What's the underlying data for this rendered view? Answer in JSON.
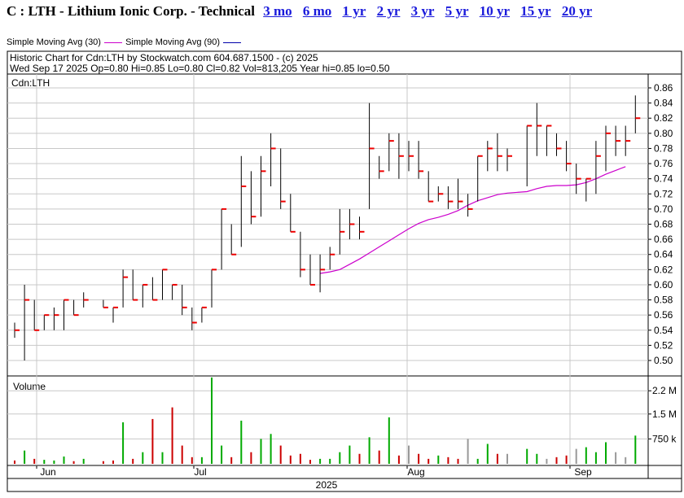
{
  "header": {
    "title": "C : LTH - Lithium Ionic Corp. - Technical",
    "periods": [
      "3 mo",
      "6 mo",
      "1 yr",
      "2 yr",
      "3 yr",
      "5 yr",
      "10 yr",
      "15 yr",
      "20 yr"
    ]
  },
  "legend": {
    "sma30": "Simple Moving Avg (30)",
    "sma90": "Simple Moving Avg (90)",
    "sma30_color": "#cc00cc",
    "sma90_color": "#0000aa"
  },
  "chart_info": {
    "line1": "Historic Chart  for Cdn:LTH by Stockwatch.com 604.687.1500 - (c) 2025",
    "line2": "Wed Sep 17 2025  Op=0.80  Hi=0.85  Lo=0.80  Cl=0.82  Vol=813,205  Year hi=0.85  lo=0.50",
    "symbol": "Cdn:LTH",
    "volume_label": "Volume"
  },
  "colors": {
    "up": "#00aa00",
    "down": "#cc0000",
    "flat": "#999999",
    "tick": "#ee0000",
    "bar": "#000000",
    "grid": "#c8c8c8"
  },
  "chart_data": {
    "type": "ohlc",
    "year_label": "2025",
    "month_labels": [
      {
        "label": "Jun",
        "index": 3
      },
      {
        "label": "Jul",
        "index": 21
      },
      {
        "label": "Aug",
        "index": 43
      },
      {
        "label": "Sep",
        "index": 62
      }
    ],
    "ylim": [
      0.49,
      0.87
    ],
    "price_ticks": [
      "0.86",
      "0.84",
      "0.82",
      "0.80",
      "0.78",
      "0.76",
      "0.74",
      "0.72",
      "0.70",
      "0.68",
      "0.66",
      "0.64",
      "0.62",
      "0.60",
      "0.58",
      "0.56",
      "0.54",
      "0.52",
      "0.50"
    ],
    "price_tick_values": [
      0.86,
      0.84,
      0.82,
      0.8,
      0.78,
      0.76,
      0.74,
      0.72,
      0.7,
      0.68,
      0.66,
      0.64,
      0.62,
      0.6,
      0.58,
      0.56,
      0.54,
      0.52,
      0.5
    ],
    "volume_ticks": [
      {
        "label": "2.2 M",
        "value": 2.2
      },
      {
        "label": "1.5 M",
        "value": 1.5
      },
      {
        "label": "750 k",
        "value": 0.75
      }
    ],
    "volume_max_millions": 2.5,
    "bars": [
      {
        "d": 0,
        "h": 0.55,
        "l": 0.53,
        "c": 0.54
      },
      {
        "d": 1,
        "h": 0.6,
        "l": 0.5,
        "c": 0.58
      },
      {
        "d": 2,
        "h": 0.58,
        "l": 0.54,
        "c": 0.54
      },
      {
        "d": 3,
        "h": 0.56,
        "l": 0.54,
        "c": 0.56
      },
      {
        "d": 4,
        "h": 0.57,
        "l": 0.54,
        "c": 0.56
      },
      {
        "d": 5,
        "h": 0.58,
        "l": 0.54,
        "c": 0.58
      },
      {
        "d": 6,
        "h": 0.58,
        "l": 0.56,
        "c": 0.56
      },
      {
        "d": 7,
        "h": 0.59,
        "l": 0.57,
        "c": 0.58
      },
      {
        "d": 9,
        "h": 0.58,
        "l": 0.57,
        "c": 0.57
      },
      {
        "d": 10,
        "h": 0.57,
        "l": 0.55,
        "c": 0.57
      },
      {
        "d": 11,
        "h": 0.62,
        "l": 0.57,
        "c": 0.61
      },
      {
        "d": 12,
        "h": 0.62,
        "l": 0.58,
        "c": 0.58
      },
      {
        "d": 13,
        "h": 0.6,
        "l": 0.57,
        "c": 0.6
      },
      {
        "d": 14,
        "h": 0.61,
        "l": 0.58,
        "c": 0.58
      },
      {
        "d": 15,
        "h": 0.62,
        "l": 0.58,
        "c": 0.62
      },
      {
        "d": 16,
        "h": 0.6,
        "l": 0.58,
        "c": 0.6
      },
      {
        "d": 17,
        "h": 0.6,
        "l": 0.56,
        "c": 0.57
      },
      {
        "d": 18,
        "h": 0.57,
        "l": 0.54,
        "c": 0.55
      },
      {
        "d": 19,
        "h": 0.57,
        "l": 0.55,
        "c": 0.57
      },
      {
        "d": 20,
        "h": 0.62,
        "l": 0.57,
        "c": 0.62
      },
      {
        "d": 21,
        "h": 0.7,
        "l": 0.62,
        "c": 0.7
      },
      {
        "d": 22,
        "h": 0.68,
        "l": 0.64,
        "c": 0.64
      },
      {
        "d": 23,
        "h": 0.77,
        "l": 0.65,
        "c": 0.73
      },
      {
        "d": 24,
        "h": 0.75,
        "l": 0.68,
        "c": 0.69
      },
      {
        "d": 25,
        "h": 0.77,
        "l": 0.69,
        "c": 0.75
      },
      {
        "d": 26,
        "h": 0.8,
        "l": 0.73,
        "c": 0.78
      },
      {
        "d": 27,
        "h": 0.78,
        "l": 0.7,
        "c": 0.71
      },
      {
        "d": 28,
        "h": 0.72,
        "l": 0.67,
        "c": 0.67
      },
      {
        "d": 29,
        "h": 0.67,
        "l": 0.61,
        "c": 0.62
      },
      {
        "d": 30,
        "h": 0.64,
        "l": 0.6,
        "c": 0.6
      },
      {
        "d": 31,
        "h": 0.64,
        "l": 0.59,
        "c": 0.62
      },
      {
        "d": 32,
        "h": 0.65,
        "l": 0.62,
        "c": 0.64
      },
      {
        "d": 33,
        "h": 0.7,
        "l": 0.64,
        "c": 0.67
      },
      {
        "d": 34,
        "h": 0.7,
        "l": 0.66,
        "c": 0.68
      },
      {
        "d": 35,
        "h": 0.69,
        "l": 0.66,
        "c": 0.67
      },
      {
        "d": 36,
        "h": 0.84,
        "l": 0.7,
        "c": 0.78
      },
      {
        "d": 37,
        "h": 0.77,
        "l": 0.74,
        "c": 0.75
      },
      {
        "d": 38,
        "h": 0.8,
        "l": 0.75,
        "c": 0.79
      },
      {
        "d": 39,
        "h": 0.8,
        "l": 0.74,
        "c": 0.77
      },
      {
        "d": 40,
        "h": 0.79,
        "l": 0.75,
        "c": 0.77
      },
      {
        "d": 41,
        "h": 0.79,
        "l": 0.74,
        "c": 0.75
      },
      {
        "d": 42,
        "h": 0.75,
        "l": 0.71,
        "c": 0.71
      },
      {
        "d": 43,
        "h": 0.73,
        "l": 0.71,
        "c": 0.72
      },
      {
        "d": 44,
        "h": 0.73,
        "l": 0.7,
        "c": 0.71
      },
      {
        "d": 45,
        "h": 0.74,
        "l": 0.7,
        "c": 0.71
      },
      {
        "d": 46,
        "h": 0.72,
        "l": 0.69,
        "c": 0.7
      },
      {
        "d": 47,
        "h": 0.77,
        "l": 0.71,
        "c": 0.77
      },
      {
        "d": 48,
        "h": 0.79,
        "l": 0.75,
        "c": 0.78
      },
      {
        "d": 49,
        "h": 0.8,
        "l": 0.75,
        "c": 0.77
      },
      {
        "d": 50,
        "h": 0.78,
        "l": 0.75,
        "c": 0.77
      },
      {
        "d": 52,
        "h": 0.81,
        "l": 0.73,
        "c": 0.81
      },
      {
        "d": 53,
        "h": 0.84,
        "l": 0.77,
        "c": 0.81
      },
      {
        "d": 54,
        "h": 0.81,
        "l": 0.77,
        "c": 0.81
      },
      {
        "d": 55,
        "h": 0.8,
        "l": 0.77,
        "c": 0.78
      },
      {
        "d": 56,
        "h": 0.79,
        "l": 0.75,
        "c": 0.76
      },
      {
        "d": 57,
        "h": 0.76,
        "l": 0.72,
        "c": 0.74
      },
      {
        "d": 58,
        "h": 0.74,
        "l": 0.71,
        "c": 0.74
      },
      {
        "d": 59,
        "h": 0.79,
        "l": 0.72,
        "c": 0.77
      },
      {
        "d": 60,
        "h": 0.81,
        "l": 0.75,
        "c": 0.8
      },
      {
        "d": 61,
        "h": 0.81,
        "l": 0.77,
        "c": 0.79
      },
      {
        "d": 62,
        "h": 0.81,
        "l": 0.77,
        "c": 0.79
      },
      {
        "d": 63,
        "h": 0.85,
        "l": 0.8,
        "c": 0.82
      }
    ],
    "volume": [
      {
        "d": 0,
        "v": 0.1,
        "dir": "down"
      },
      {
        "d": 1,
        "v": 0.4,
        "dir": "up"
      },
      {
        "d": 2,
        "v": 0.15,
        "dir": "down"
      },
      {
        "d": 3,
        "v": 0.12,
        "dir": "up"
      },
      {
        "d": 4,
        "v": 0.1,
        "dir": "up"
      },
      {
        "d": 5,
        "v": 0.22,
        "dir": "up"
      },
      {
        "d": 6,
        "v": 0.08,
        "dir": "down"
      },
      {
        "d": 7,
        "v": 0.15,
        "dir": "up"
      },
      {
        "d": 9,
        "v": 0.08,
        "dir": "down"
      },
      {
        "d": 10,
        "v": 0.1,
        "dir": "down"
      },
      {
        "d": 11,
        "v": 1.25,
        "dir": "up"
      },
      {
        "d": 12,
        "v": 0.15,
        "dir": "down"
      },
      {
        "d": 13,
        "v": 0.35,
        "dir": "up"
      },
      {
        "d": 14,
        "v": 1.35,
        "dir": "down"
      },
      {
        "d": 15,
        "v": 0.35,
        "dir": "up"
      },
      {
        "d": 16,
        "v": 1.7,
        "dir": "down"
      },
      {
        "d": 17,
        "v": 0.55,
        "dir": "down"
      },
      {
        "d": 18,
        "v": 0.2,
        "dir": "down"
      },
      {
        "d": 19,
        "v": 0.2,
        "dir": "up"
      },
      {
        "d": 20,
        "v": 2.6,
        "dir": "up"
      },
      {
        "d": 21,
        "v": 0.55,
        "dir": "up"
      },
      {
        "d": 22,
        "v": 0.2,
        "dir": "down"
      },
      {
        "d": 23,
        "v": 1.3,
        "dir": "up"
      },
      {
        "d": 24,
        "v": 0.35,
        "dir": "down"
      },
      {
        "d": 25,
        "v": 0.75,
        "dir": "up"
      },
      {
        "d": 26,
        "v": 0.9,
        "dir": "up"
      },
      {
        "d": 27,
        "v": 0.55,
        "dir": "down"
      },
      {
        "d": 28,
        "v": 0.25,
        "dir": "down"
      },
      {
        "d": 29,
        "v": 0.3,
        "dir": "down"
      },
      {
        "d": 30,
        "v": 0.12,
        "dir": "down"
      },
      {
        "d": 31,
        "v": 0.15,
        "dir": "up"
      },
      {
        "d": 32,
        "v": 0.15,
        "dir": "up"
      },
      {
        "d": 33,
        "v": 0.35,
        "dir": "up"
      },
      {
        "d": 34,
        "v": 0.55,
        "dir": "up"
      },
      {
        "d": 35,
        "v": 0.3,
        "dir": "down"
      },
      {
        "d": 36,
        "v": 0.8,
        "dir": "up"
      },
      {
        "d": 37,
        "v": 0.4,
        "dir": "down"
      },
      {
        "d": 38,
        "v": 1.4,
        "dir": "up"
      },
      {
        "d": 39,
        "v": 0.25,
        "dir": "down"
      },
      {
        "d": 40,
        "v": 0.55,
        "dir": "flat"
      },
      {
        "d": 41,
        "v": 0.3,
        "dir": "down"
      },
      {
        "d": 42,
        "v": 0.15,
        "dir": "down"
      },
      {
        "d": 43,
        "v": 0.25,
        "dir": "up"
      },
      {
        "d": 44,
        "v": 0.2,
        "dir": "down"
      },
      {
        "d": 45,
        "v": 0.15,
        "dir": "down"
      },
      {
        "d": 46,
        "v": 0.75,
        "dir": "flat"
      },
      {
        "d": 47,
        "v": 0.15,
        "dir": "up"
      },
      {
        "d": 48,
        "v": 0.6,
        "dir": "up"
      },
      {
        "d": 49,
        "v": 0.3,
        "dir": "down"
      },
      {
        "d": 50,
        "v": 0.3,
        "dir": "flat"
      },
      {
        "d": 52,
        "v": 0.45,
        "dir": "up"
      },
      {
        "d": 53,
        "v": 0.3,
        "dir": "up"
      },
      {
        "d": 54,
        "v": 0.15,
        "dir": "flat"
      },
      {
        "d": 55,
        "v": 0.2,
        "dir": "down"
      },
      {
        "d": 56,
        "v": 0.25,
        "dir": "down"
      },
      {
        "d": 57,
        "v": 0.45,
        "dir": "flat"
      },
      {
        "d": 58,
        "v": 0.5,
        "dir": "up"
      },
      {
        "d": 59,
        "v": 0.35,
        "dir": "up"
      },
      {
        "d": 60,
        "v": 0.65,
        "dir": "up"
      },
      {
        "d": 61,
        "v": 0.35,
        "dir": "flat"
      },
      {
        "d": 62,
        "v": 0.2,
        "dir": "flat"
      },
      {
        "d": 63,
        "v": 0.85,
        "dir": "up"
      }
    ],
    "sma30": [
      {
        "d": 31,
        "v": 0.615
      },
      {
        "d": 32,
        "v": 0.617
      },
      {
        "d": 33,
        "v": 0.62
      },
      {
        "d": 34,
        "v": 0.627
      },
      {
        "d": 35,
        "v": 0.634
      },
      {
        "d": 36,
        "v": 0.642
      },
      {
        "d": 37,
        "v": 0.65
      },
      {
        "d": 38,
        "v": 0.658
      },
      {
        "d": 39,
        "v": 0.666
      },
      {
        "d": 40,
        "v": 0.674
      },
      {
        "d": 41,
        "v": 0.681
      },
      {
        "d": 42,
        "v": 0.686
      },
      {
        "d": 43,
        "v": 0.689
      },
      {
        "d": 44,
        "v": 0.693
      },
      {
        "d": 45,
        "v": 0.698
      },
      {
        "d": 46,
        "v": 0.705
      },
      {
        "d": 47,
        "v": 0.711
      },
      {
        "d": 48,
        "v": 0.715
      },
      {
        "d": 49,
        "v": 0.719
      },
      {
        "d": 50,
        "v": 0.721
      },
      {
        "d": 52,
        "v": 0.723
      },
      {
        "d": 53,
        "v": 0.727
      },
      {
        "d": 54,
        "v": 0.73
      },
      {
        "d": 55,
        "v": 0.731
      },
      {
        "d": 56,
        "v": 0.731
      },
      {
        "d": 57,
        "v": 0.732
      },
      {
        "d": 58,
        "v": 0.735
      },
      {
        "d": 59,
        "v": 0.74
      },
      {
        "d": 60,
        "v": 0.746
      },
      {
        "d": 61,
        "v": 0.751
      },
      {
        "d": 62,
        "v": 0.756
      }
    ]
  }
}
